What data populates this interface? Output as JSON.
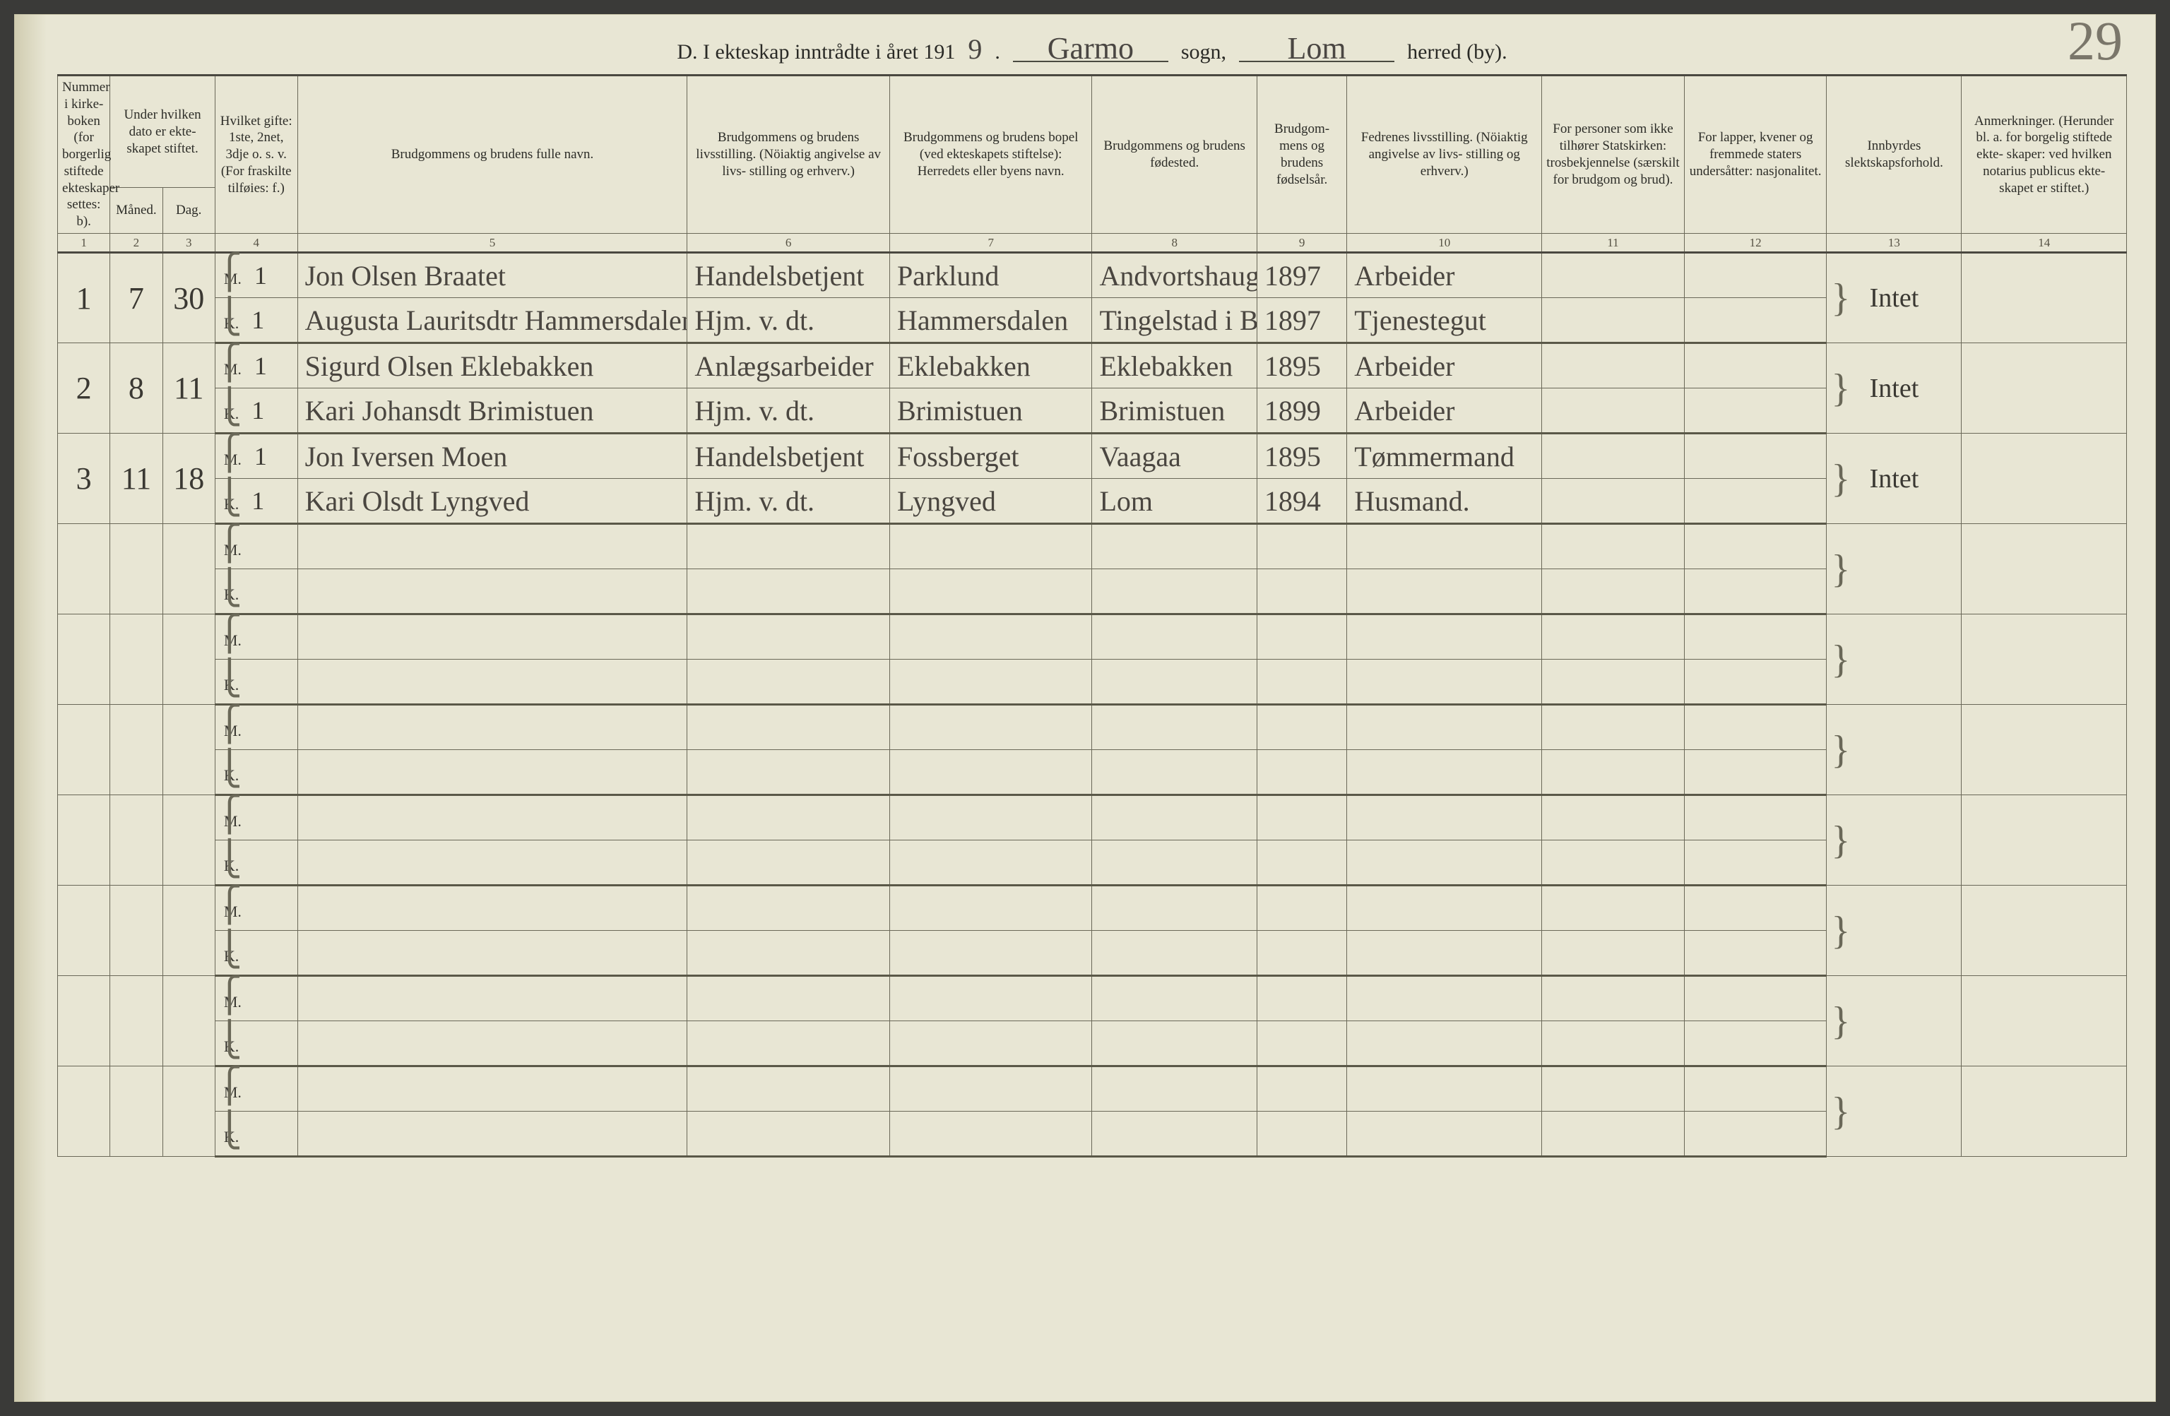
{
  "header": {
    "title_prefix": "D.  I ekteskap inntrådte i året 191",
    "year_suffix": "9",
    "period": ".",
    "sogn_value": "Garmo",
    "sogn_label": "sogn,",
    "herred_value": "Lom",
    "herred_label": "herred (by).",
    "page_number": "29"
  },
  "columns": {
    "c1": "Nummer i kirke- boken (for borgerlig stiftede ekteskaper settes: b).",
    "c2_3": "Under hvilken dato er ekte- skapet stiftet.",
    "c2": "Måned.",
    "c3": "Dag.",
    "c4": "Hvilket gifte: 1ste, 2net, 3dje o. s. v. (For fraskilte tilføies: f.)",
    "c5": "Brudgommens og brudens fulle navn.",
    "c6": "Brudgommens og brudens livsstilling. (Nöiaktig angivelse av livs- stilling og erhverv.)",
    "c7": "Brudgommens og brudens bopel (ved ekteskapets stiftelse): Herredets eller byens navn.",
    "c8": "Brudgommens og brudens fødested.",
    "c9": "Brudgom- mens og brudens fødselsår.",
    "c10": "Fedrenes livsstilling. (Nöiaktig angivelse av livs- stilling og erhverv.)",
    "c11": "For personer som ikke tilhører Statskirken: trosbekjennelse (særskilt for brudgom og brud).",
    "c12": "For lapper, kvener og fremmede staters undersåtter: nasjonalitet.",
    "c13": "Innbyrdes slektskapsforhold.",
    "c14": "Anmerkninger. (Herunder bl. a. for borgelig stiftede ekte- skaper: ved hvilken notarius publicus ekte- skapet er stiftet.)"
  },
  "col_nums": [
    "1",
    "2",
    "3",
    "4",
    "5",
    "6",
    "7",
    "8",
    "9",
    "10",
    "11",
    "12",
    "13",
    "14"
  ],
  "mk_labels": {
    "m": "M.",
    "k": "K."
  },
  "entries": [
    {
      "no": "1",
      "month": "7",
      "day": "30",
      "m": {
        "gifte": "1",
        "name": "Jon Olsen Braatet",
        "stilling": "Handelsbetjent",
        "bopel": "Parklund",
        "fodested": "Andvortshaugen",
        "aar": "1897",
        "far": "Arbeider"
      },
      "k": {
        "gifte": "1",
        "name": "Augusta Lauritsdtr Hammersdalen",
        "stilling": "Hjm. v. dt.",
        "bopel": "Hammersdalen",
        "fodested": "Tingelstad i Brandbu",
        "aar": "1897",
        "far": "Tjenestegut"
      },
      "c13": "Intet"
    },
    {
      "no": "2",
      "month": "8",
      "day": "11",
      "m": {
        "gifte": "1",
        "name": "Sigurd Olsen Eklebakken",
        "stilling": "Anlægsarbeider",
        "bopel": "Eklebakken",
        "fodested": "Eklebakken",
        "aar": "1895",
        "far": "Arbeider"
      },
      "k": {
        "gifte": "1",
        "name": "Kari Johansdt Brimistuen",
        "stilling": "Hjm. v. dt.",
        "bopel": "Brimistuen",
        "fodested": "Brimistuen",
        "aar": "1899",
        "far": "Arbeider"
      },
      "c13": "Intet"
    },
    {
      "no": "3",
      "month": "11",
      "day": "18",
      "m": {
        "gifte": "1",
        "name": "Jon Iversen Moen",
        "stilling": "Handelsbetjent",
        "bopel": "Fossberget",
        "fodested": "Vaagaa",
        "aar": "1895",
        "far": "Tømmermand"
      },
      "k": {
        "gifte": "1",
        "name": "Kari Olsdt Lyngved",
        "stilling": "Hjm. v. dt.",
        "bopel": "Lyngved",
        "fodested": "Lom",
        "aar": "1894",
        "far": "Husmand."
      },
      "c13": "Intet"
    }
  ],
  "blank_pairs": 7,
  "colors": {
    "paper": "#e8e6d4",
    "rule": "#6a6858",
    "heavy_rule": "#4a4840",
    "ink": "#4a4640"
  }
}
